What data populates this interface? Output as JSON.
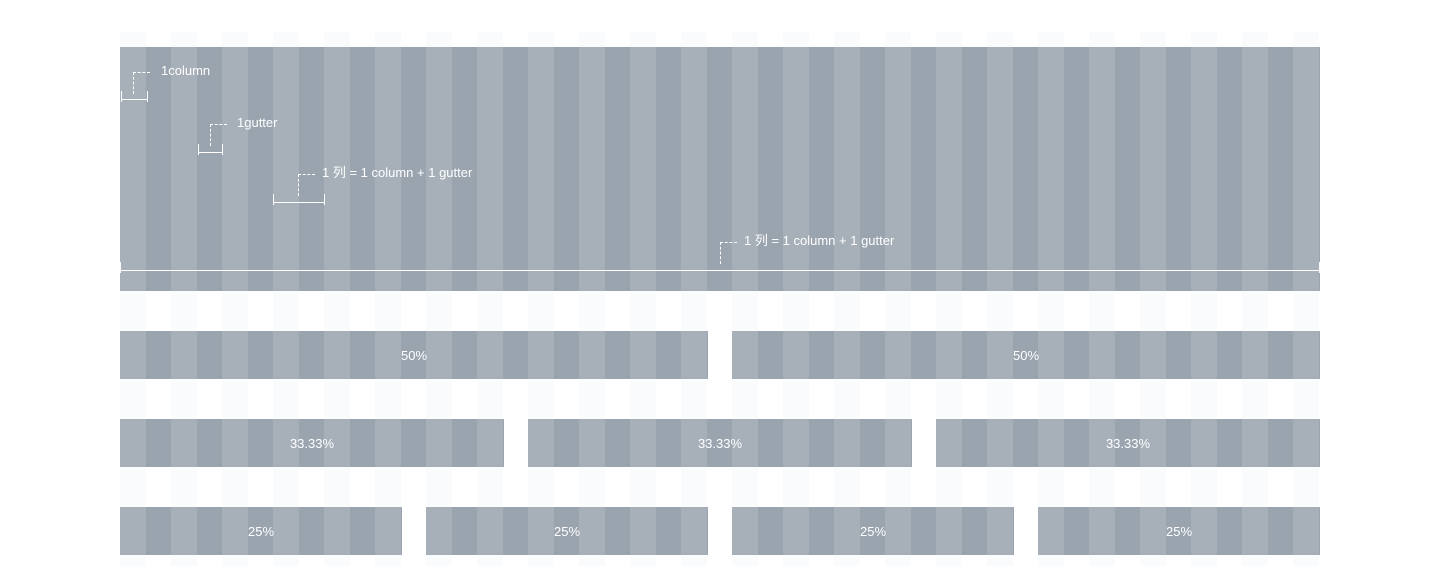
{
  "annotations": {
    "column": "1column",
    "gutter": "1gutter",
    "col_unit": "1 列 = 1 column + 1 gutter",
    "total_width": "1 列 = 1 column + 1 gutter"
  },
  "rows": {
    "half": [
      "50%",
      "50%"
    ],
    "third": [
      "33.33%",
      "33.33%",
      "33.33%"
    ],
    "quarter": [
      "25%",
      "25%",
      "25%",
      "25%"
    ]
  },
  "colors": {
    "column_light": "#a7b0b9",
    "column_dark": "#9aa4af",
    "grid_background": "#fafbfc",
    "text": "#ffffff"
  }
}
